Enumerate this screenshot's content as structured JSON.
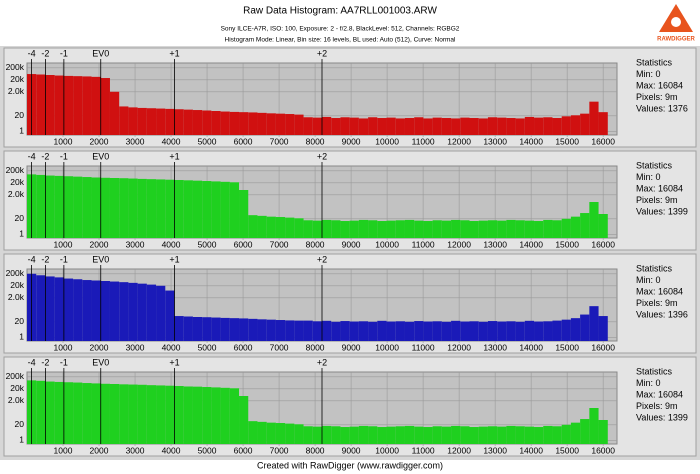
{
  "header": {
    "title": "Raw Data Histogram: AA7RLL001003.ARW",
    "subtitle": "Sony ILCE-A7R, ISO: 100, Exposure: 2 - f/2.8, BlackLevel: 512, Channels: RGBG2",
    "mode": "Histogram Mode: Linear, Bin size: 16 levels, BL used: Auto (512), Curve: Normal"
  },
  "logo": "RAWDIGGER",
  "footer": "Created with RawDigger (www.rawdigger.com)",
  "chart_data": [
    {
      "type": "histogram",
      "color": "#d01010",
      "log_scale": true,
      "grid": true,
      "bins": [
        0,
        256,
        512,
        768,
        1024,
        1280,
        1536,
        1792,
        2048,
        2304,
        2560,
        2816,
        3072,
        3328,
        3584,
        3840,
        4096,
        4352,
        4608,
        4864,
        5120,
        5376,
        5632,
        5888,
        6144,
        6400,
        6656,
        6912,
        7168,
        7424,
        7680,
        7936,
        8192,
        8448,
        8704,
        8960,
        9216,
        9472,
        9728,
        9984,
        10240,
        10496,
        10752,
        11008,
        11264,
        11520,
        11776,
        12032,
        12288,
        12544,
        12800,
        13056,
        13312,
        13568,
        13824,
        14080,
        14336,
        14592,
        14848,
        15104,
        15360,
        15616,
        15872,
        16128,
        16384
      ],
      "values": [
        60000,
        55000,
        50000,
        45000,
        42000,
        40000,
        38000,
        35000,
        28000,
        2000,
        120,
        100,
        90,
        85,
        80,
        75,
        70,
        65,
        60,
        55,
        50,
        45,
        42,
        40,
        38,
        35,
        32,
        30,
        28,
        25,
        15,
        14,
        16,
        13,
        15,
        14,
        12,
        15,
        13,
        14,
        12,
        13,
        15,
        12,
        14,
        13,
        12,
        14,
        13,
        12,
        15,
        14,
        13,
        12,
        16,
        14,
        15,
        13,
        18,
        22,
        30,
        300,
        40,
        0
      ],
      "xlim": [
        0,
        16384
      ],
      "xticks": [
        1000,
        2000,
        3000,
        4000,
        5000,
        6000,
        7000,
        8000,
        9000,
        10000,
        11000,
        12000,
        13000,
        14000,
        15000,
        16000
      ],
      "ev_ticks": [
        {
          "value": 128,
          "label": "-4"
        },
        {
          "value": 512,
          "label": "-2"
        },
        {
          "value": 1024,
          "label": "-1"
        },
        {
          "value": 2048,
          "label": "EV0"
        },
        {
          "value": 4096,
          "label": "+1"
        },
        {
          "value": 8192,
          "label": "+2"
        }
      ],
      "ylim": [
        0.5,
        500000
      ],
      "yticks": [
        1,
        20,
        {
          "value": 2000,
          "label": "2.0k"
        },
        {
          "value": 20000,
          "label": "20k"
        },
        {
          "value": 200000,
          "label": "200k"
        }
      ],
      "stats": [
        "Statistics",
        "Min: 0",
        "Max: 16084",
        "Pixels: 9m",
        "Values: 1376"
      ]
    },
    {
      "type": "histogram",
      "color": "#1fd01f",
      "log_scale": true,
      "grid": true,
      "bins": [
        0,
        256,
        512,
        768,
        1024,
        1280,
        1536,
        1792,
        2048,
        2304,
        2560,
        2816,
        3072,
        3328,
        3584,
        3840,
        4096,
        4352,
        4608,
        4864,
        5120,
        5376,
        5632,
        5888,
        6144,
        6400,
        6656,
        6912,
        7168,
        7424,
        7680,
        7936,
        8192,
        8448,
        8704,
        8960,
        9216,
        9472,
        9728,
        9984,
        10240,
        10496,
        10752,
        11008,
        11264,
        11520,
        11776,
        12032,
        12288,
        12544,
        12800,
        13056,
        13312,
        13568,
        13824,
        14080,
        14336,
        14592,
        14848,
        15104,
        15360,
        15616,
        15872,
        16128,
        16384
      ],
      "values": [
        100000,
        90000,
        80000,
        75000,
        70000,
        65000,
        60000,
        55000,
        52000,
        50000,
        48000,
        45000,
        42000,
        40000,
        38000,
        36000,
        34000,
        32000,
        30000,
        28000,
        26000,
        24000,
        22000,
        5000,
        40,
        35,
        30,
        28,
        25,
        22,
        15,
        14,
        16,
        15,
        13,
        14,
        16,
        15,
        13,
        14,
        15,
        16,
        14,
        13,
        15,
        14,
        16,
        15,
        13,
        14,
        15,
        14,
        16,
        15,
        14,
        13,
        16,
        15,
        20,
        30,
        60,
        500,
        50,
        0
      ],
      "xlim": [
        0,
        16384
      ],
      "xticks": [
        1000,
        2000,
        3000,
        4000,
        5000,
        6000,
        7000,
        8000,
        9000,
        10000,
        11000,
        12000,
        13000,
        14000,
        15000,
        16000
      ],
      "ev_ticks": [
        {
          "value": 128,
          "label": "-4"
        },
        {
          "value": 512,
          "label": "-2"
        },
        {
          "value": 1024,
          "label": "-1"
        },
        {
          "value": 2048,
          "label": "EV0"
        },
        {
          "value": 4096,
          "label": "+1"
        },
        {
          "value": 8192,
          "label": "+2"
        }
      ],
      "ylim": [
        0.5,
        500000
      ],
      "yticks": [
        1,
        20,
        {
          "value": 2000,
          "label": "2.0k"
        },
        {
          "value": 20000,
          "label": "20k"
        },
        {
          "value": 200000,
          "label": "200k"
        }
      ],
      "stats": [
        "Statistics",
        "Min: 0",
        "Max: 16084",
        "Pixels: 9m",
        "Values: 1399"
      ]
    },
    {
      "type": "histogram",
      "color": "#1a1ab8",
      "log_scale": true,
      "grid": true,
      "bins": [
        0,
        256,
        512,
        768,
        1024,
        1280,
        1536,
        1792,
        2048,
        2304,
        2560,
        2816,
        3072,
        3328,
        3584,
        3840,
        4096,
        4352,
        4608,
        4864,
        5120,
        5376,
        5632,
        5888,
        6144,
        6400,
        6656,
        6912,
        7168,
        7424,
        7680,
        7936,
        8192,
        8448,
        8704,
        8960,
        9216,
        9472,
        9728,
        9984,
        10240,
        10496,
        10752,
        11008,
        11264,
        11520,
        11776,
        12032,
        12288,
        12544,
        12800,
        13056,
        13312,
        13568,
        13824,
        14080,
        14336,
        14592,
        14848,
        15104,
        15360,
        15616,
        15872,
        16128,
        16384
      ],
      "values": [
        200000,
        150000,
        120000,
        100000,
        80000,
        70000,
        60000,
        55000,
        50000,
        45000,
        40000,
        35000,
        30000,
        25000,
        20000,
        8000,
        60,
        55,
        50,
        48,
        45,
        42,
        40,
        38,
        35,
        32,
        30,
        28,
        26,
        25,
        25,
        22,
        24,
        20,
        23,
        21,
        22,
        20,
        24,
        21,
        22,
        20,
        23,
        21,
        22,
        20,
        24,
        21,
        22,
        20,
        23,
        21,
        22,
        20,
        24,
        21,
        22,
        25,
        30,
        40,
        80,
        400,
        60,
        0
      ],
      "xlim": [
        0,
        16384
      ],
      "xticks": [
        1000,
        2000,
        3000,
        4000,
        5000,
        6000,
        7000,
        8000,
        9000,
        10000,
        11000,
        12000,
        13000,
        14000,
        15000,
        16000
      ],
      "ev_ticks": [
        {
          "value": 128,
          "label": "-4"
        },
        {
          "value": 512,
          "label": "-2"
        },
        {
          "value": 1024,
          "label": "-1"
        },
        {
          "value": 2048,
          "label": "EV0"
        },
        {
          "value": 4096,
          "label": "+1"
        },
        {
          "value": 8192,
          "label": "+2"
        }
      ],
      "ylim": [
        0.5,
        500000
      ],
      "yticks": [
        1,
        20,
        {
          "value": 2000,
          "label": "2.0k"
        },
        {
          "value": 20000,
          "label": "20k"
        },
        {
          "value": 200000,
          "label": "200k"
        }
      ],
      "stats": [
        "Statistics",
        "Min: 0",
        "Max: 16084",
        "Pixels: 9m",
        "Values: 1396"
      ]
    },
    {
      "type": "histogram",
      "color": "#1fd01f",
      "log_scale": true,
      "grid": true,
      "bins": [
        0,
        256,
        512,
        768,
        1024,
        1280,
        1536,
        1792,
        2048,
        2304,
        2560,
        2816,
        3072,
        3328,
        3584,
        3840,
        4096,
        4352,
        4608,
        4864,
        5120,
        5376,
        5632,
        5888,
        6144,
        6400,
        6656,
        6912,
        7168,
        7424,
        7680,
        7936,
        8192,
        8448,
        8704,
        8960,
        9216,
        9472,
        9728,
        9984,
        10240,
        10496,
        10752,
        11008,
        11264,
        11520,
        11776,
        12032,
        12288,
        12544,
        12800,
        13056,
        13312,
        13568,
        13824,
        14080,
        14336,
        14592,
        14848,
        15104,
        15360,
        15616,
        15872,
        16128,
        16384
      ],
      "values": [
        100000,
        92000,
        80000,
        74000,
        70000,
        66000,
        60000,
        56000,
        52000,
        50000,
        47000,
        45000,
        43000,
        40000,
        38000,
        36000,
        34000,
        31000,
        30000,
        28000,
        26000,
        24000,
        22000,
        5000,
        40,
        35,
        30,
        28,
        25,
        22,
        15,
        14,
        16,
        15,
        13,
        14,
        16,
        15,
        13,
        14,
        15,
        16,
        14,
        13,
        15,
        14,
        16,
        15,
        13,
        14,
        15,
        14,
        16,
        15,
        14,
        13,
        16,
        15,
        20,
        30,
        60,
        500,
        50,
        0
      ],
      "xlim": [
        0,
        16384
      ],
      "xticks": [
        1000,
        2000,
        3000,
        4000,
        5000,
        6000,
        7000,
        8000,
        9000,
        10000,
        11000,
        12000,
        13000,
        14000,
        15000,
        16000
      ],
      "ev_ticks": [
        {
          "value": 128,
          "label": "-4"
        },
        {
          "value": 512,
          "label": "-2"
        },
        {
          "value": 1024,
          "label": "-1"
        },
        {
          "value": 2048,
          "label": "EV0"
        },
        {
          "value": 4096,
          "label": "+1"
        },
        {
          "value": 8192,
          "label": "+2"
        }
      ],
      "ylim": [
        0.5,
        500000
      ],
      "yticks": [
        1,
        20,
        {
          "value": 2000,
          "label": "2.0k"
        },
        {
          "value": 20000,
          "label": "20k"
        },
        {
          "value": 200000,
          "label": "200k"
        }
      ],
      "stats": [
        "Statistics",
        "Min: 0",
        "Max: 16084",
        "Pixels: 9m",
        "Values: 1399"
      ]
    }
  ]
}
